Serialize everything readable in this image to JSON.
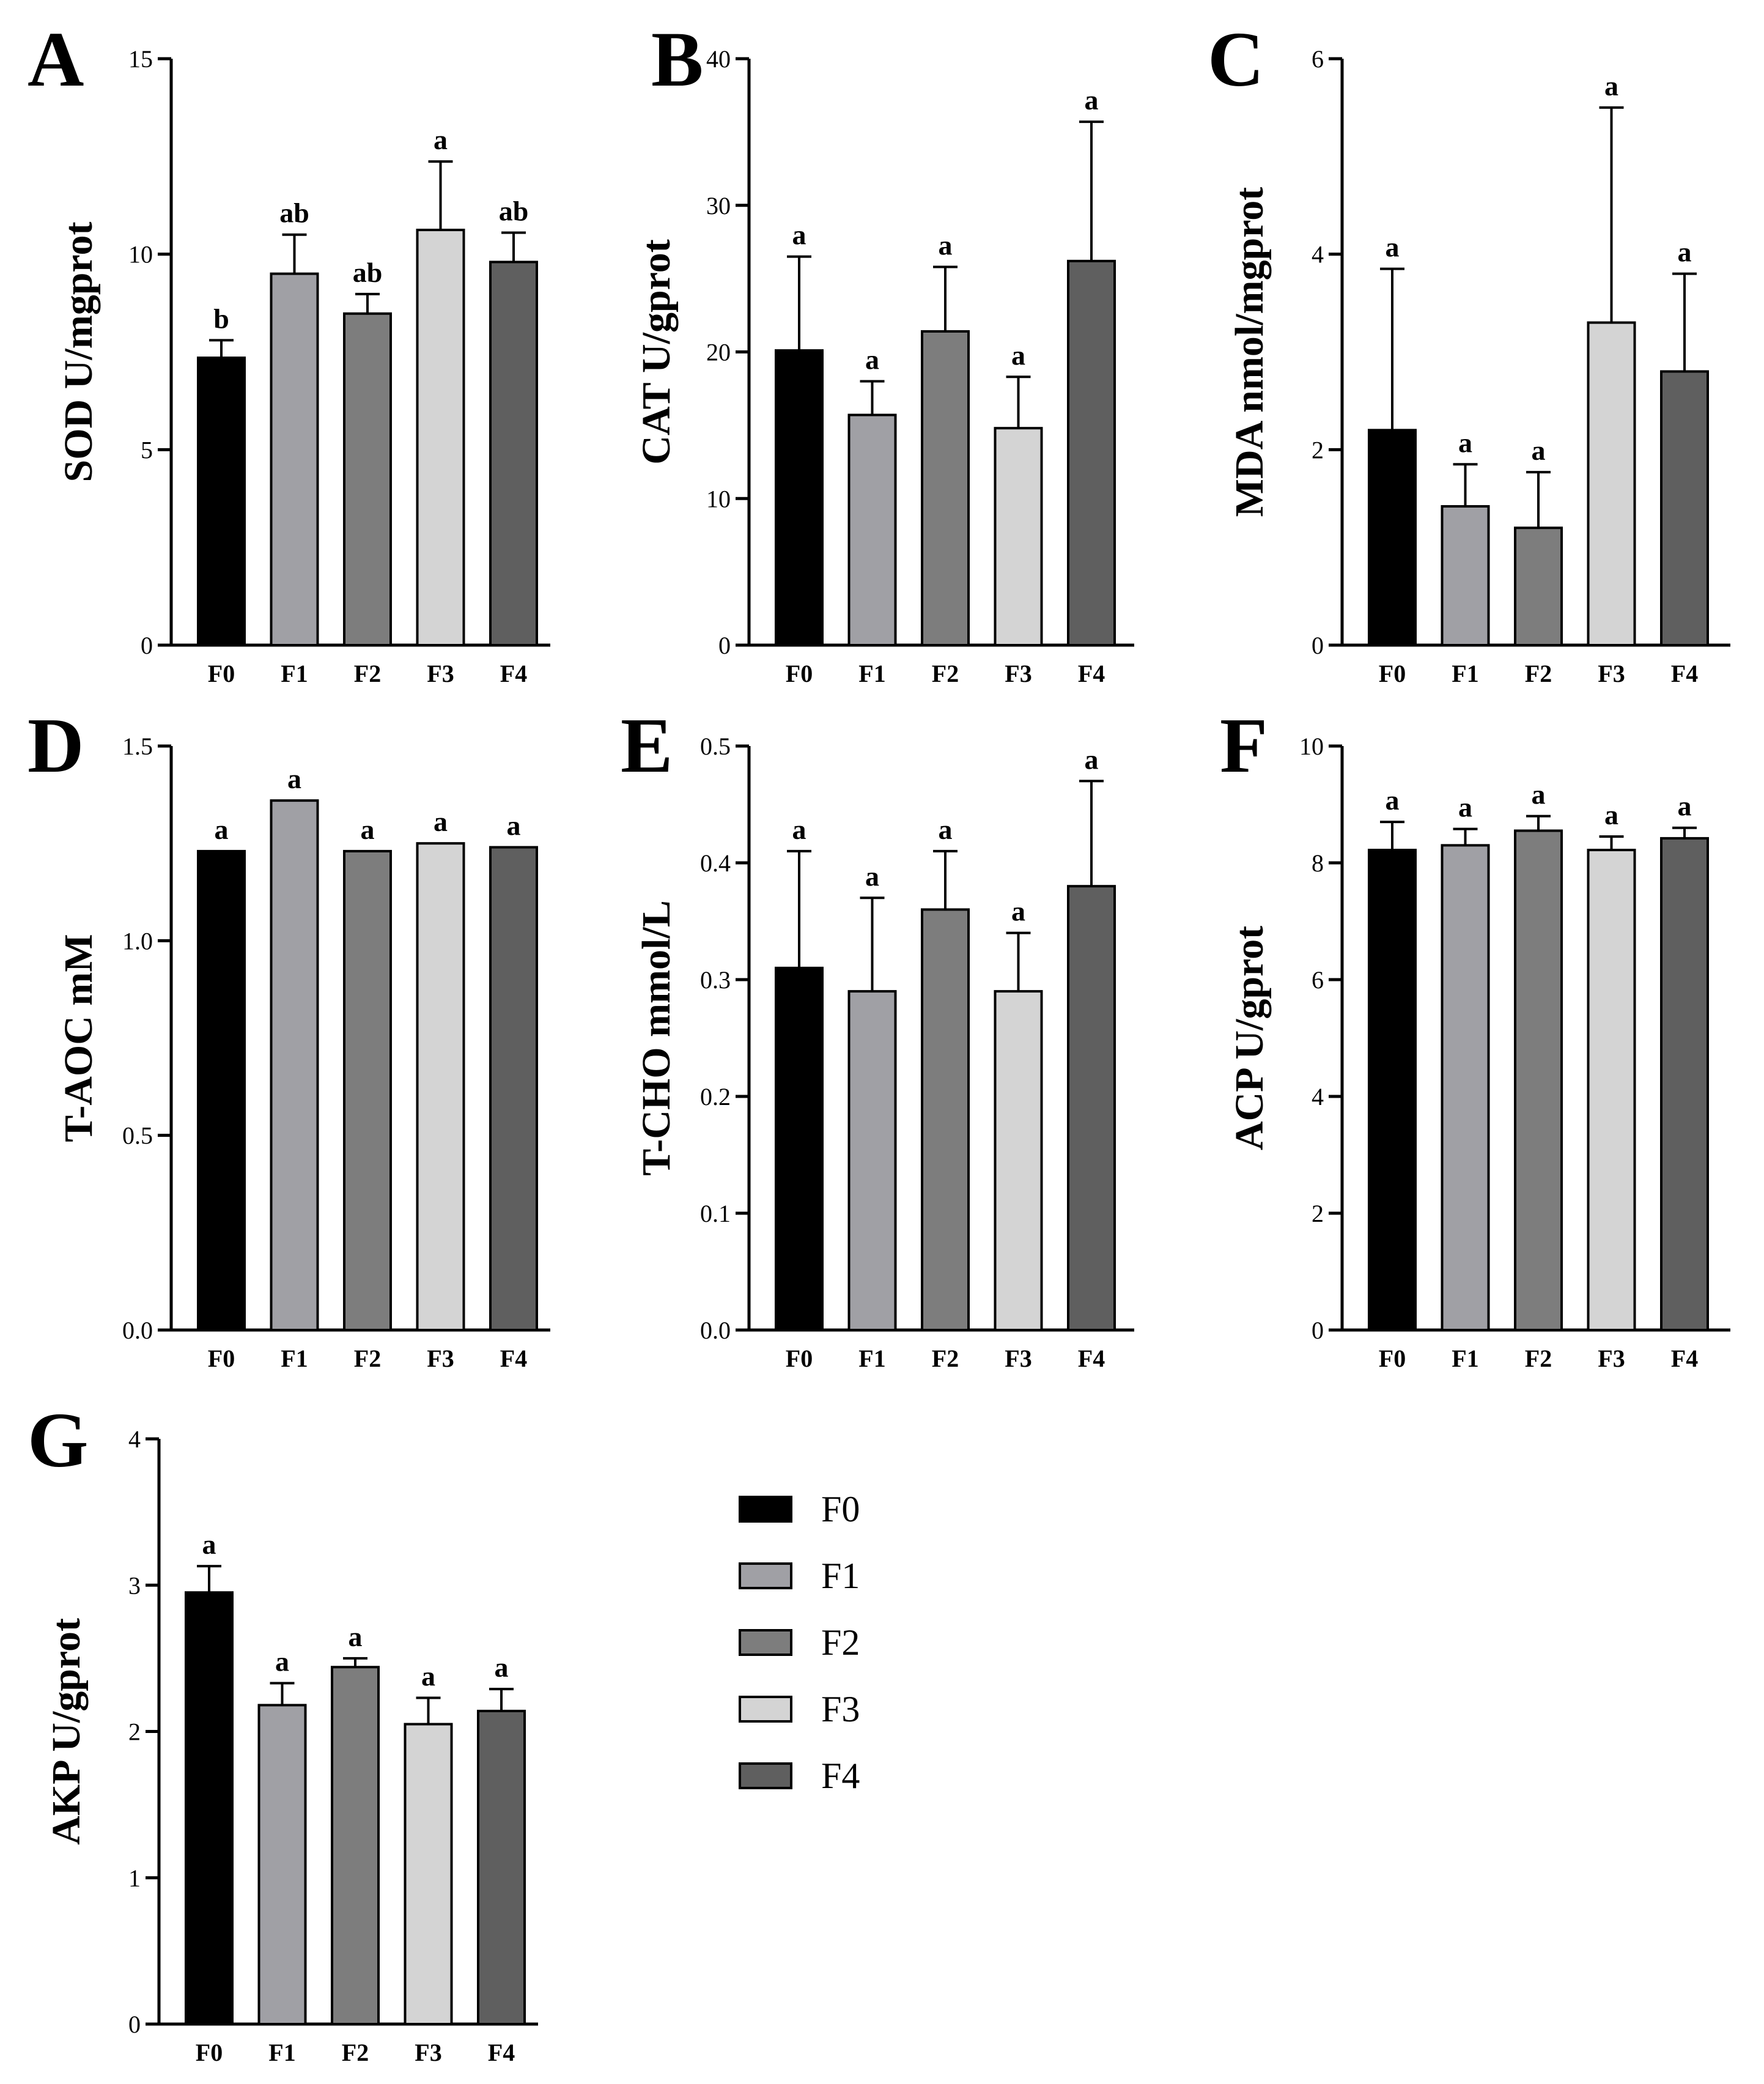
{
  "legend": {
    "items": [
      {
        "label": "F0",
        "color": "#000000"
      },
      {
        "label": "F1",
        "color": "#a0a0a5"
      },
      {
        "label": "F2",
        "color": "#7d7d7d"
      },
      {
        "label": "F3",
        "color": "#d4d4d4"
      },
      {
        "label": "F4",
        "color": "#5f5f5f"
      }
    ]
  },
  "chart_data": [
    {
      "panel": "A",
      "type": "bar",
      "ylabel": "SOD U/mgprot",
      "categories": [
        "F0",
        "F1",
        "F2",
        "F3",
        "F4"
      ],
      "values": [
        7.35,
        9.5,
        8.48,
        10.62,
        9.8
      ],
      "errors": [
        0.45,
        1.0,
        0.5,
        1.75,
        0.75
      ],
      "significance": [
        "b",
        "ab",
        "ab",
        "a",
        "ab"
      ],
      "ylim": [
        0,
        15
      ],
      "yticks": [
        0,
        5,
        10,
        15
      ],
      "ytick_labels": [
        "0",
        "5",
        "10",
        "15"
      ]
    },
    {
      "panel": "B",
      "type": "bar",
      "ylabel": "CAT U/gprot",
      "categories": [
        "F0",
        "F1",
        "F2",
        "F3",
        "F4"
      ],
      "values": [
        20.1,
        15.7,
        21.4,
        14.8,
        26.2
      ],
      "errors": [
        6.4,
        2.3,
        4.4,
        3.5,
        9.5
      ],
      "significance": [
        "a",
        "a",
        "a",
        "a",
        "a"
      ],
      "ylim": [
        0,
        40
      ],
      "yticks": [
        0,
        10,
        20,
        30,
        40
      ],
      "ytick_labels": [
        "0",
        "10",
        "20",
        "30",
        "40"
      ]
    },
    {
      "panel": "C",
      "type": "bar",
      "ylabel": "MDA nmol/mgprot",
      "categories": [
        "F0",
        "F1",
        "F2",
        "F3",
        "F4"
      ],
      "values": [
        2.2,
        1.42,
        1.2,
        3.3,
        2.8
      ],
      "errors": [
        1.65,
        0.43,
        0.57,
        2.2,
        1.0
      ],
      "significance": [
        "a",
        "a",
        "a",
        "a",
        "a"
      ],
      "ylim": [
        0,
        6
      ],
      "yticks": [
        0,
        2,
        4,
        6
      ],
      "ytick_labels": [
        "0",
        "2",
        "4",
        "6"
      ]
    },
    {
      "panel": "D",
      "type": "bar",
      "ylabel": "T-AOC mM",
      "categories": [
        "F0",
        "F1",
        "F2",
        "F3",
        "F4"
      ],
      "values": [
        1.23,
        1.36,
        1.23,
        1.25,
        1.24
      ],
      "errors": [
        0,
        0,
        0,
        0,
        0
      ],
      "significance": [
        "a",
        "a",
        "a",
        "a",
        "a"
      ],
      "ylim": [
        0,
        1.5
      ],
      "yticks": [
        0,
        0.5,
        1.0,
        1.5
      ],
      "ytick_labels": [
        "0.0",
        "0.5",
        "1.0",
        "1.5"
      ]
    },
    {
      "panel": "E",
      "type": "bar",
      "ylabel": "T-CHO mmol/L",
      "categories": [
        "F0",
        "F1",
        "F2",
        "F3",
        "F4"
      ],
      "values": [
        0.31,
        0.29,
        0.36,
        0.29,
        0.38
      ],
      "errors": [
        0.1,
        0.08,
        0.05,
        0.05,
        0.09
      ],
      "significance": [
        "a",
        "a",
        "a",
        "a",
        "a"
      ],
      "ylim": [
        0,
        0.5
      ],
      "yticks": [
        0,
        0.1,
        0.2,
        0.3,
        0.4,
        0.5
      ],
      "ytick_labels": [
        "0.0",
        "0.1",
        "0.2",
        "0.3",
        "0.4",
        "0.5"
      ]
    },
    {
      "panel": "F",
      "type": "bar",
      "ylabel": "ACP U/gprot",
      "categories": [
        "F0",
        "F1",
        "F2",
        "F3",
        "F4"
      ],
      "values": [
        8.22,
        8.3,
        8.55,
        8.22,
        8.42
      ],
      "errors": [
        0.48,
        0.28,
        0.25,
        0.23,
        0.18
      ],
      "significance": [
        "a",
        "a",
        "a",
        "a",
        "a"
      ],
      "ylim": [
        0,
        10
      ],
      "yticks": [
        0,
        2,
        4,
        6,
        8,
        10
      ],
      "ytick_labels": [
        "0",
        "2",
        "4",
        "6",
        "8",
        "10"
      ]
    },
    {
      "panel": "G",
      "type": "bar",
      "ylabel": "AKP U/gprot",
      "categories": [
        "F0",
        "F1",
        "F2",
        "F3",
        "F4"
      ],
      "values": [
        2.95,
        2.18,
        2.44,
        2.05,
        2.14
      ],
      "errors": [
        0.18,
        0.15,
        0.06,
        0.18,
        0.15
      ],
      "significance": [
        "a",
        "a",
        "a",
        "a",
        "a"
      ],
      "ylim": [
        0,
        4
      ],
      "yticks": [
        0,
        1,
        2,
        3,
        4
      ],
      "ytick_labels": [
        "0",
        "1",
        "2",
        "3",
        "4"
      ]
    }
  ]
}
